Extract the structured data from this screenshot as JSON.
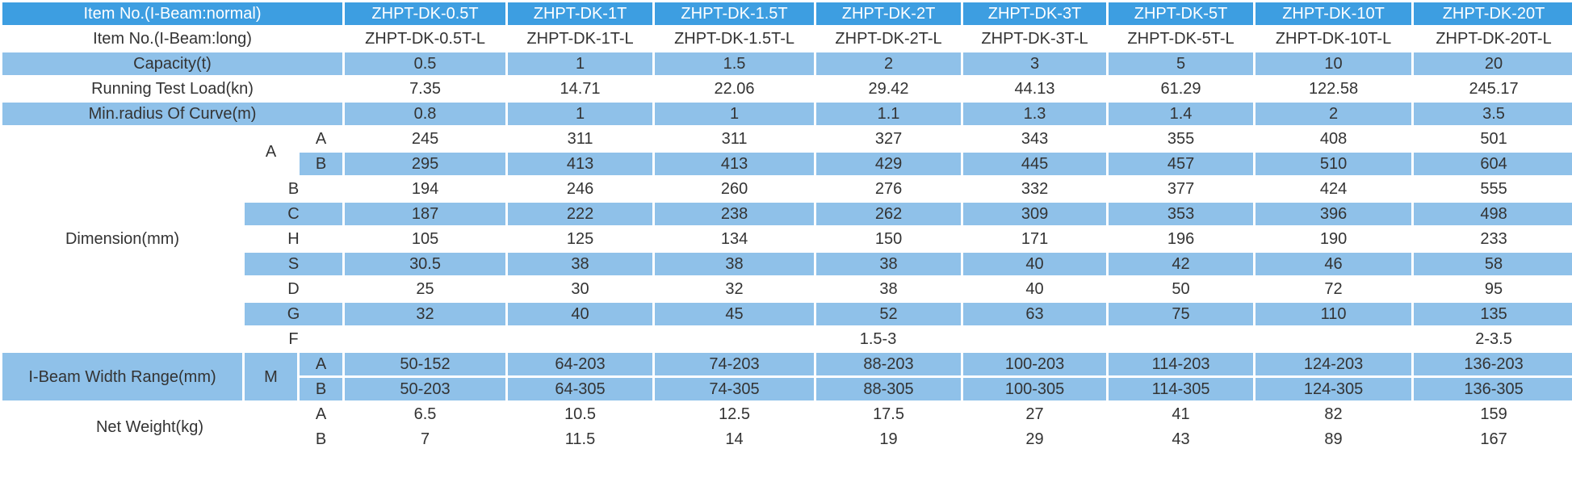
{
  "header": {
    "label": "Item No.(I-Beam:normal)",
    "models": [
      "ZHPT-DK-0.5T",
      "ZHPT-DK-1T",
      "ZHPT-DK-1.5T",
      "ZHPT-DK-2T",
      "ZHPT-DK-3T",
      "ZHPT-DK-5T",
      "ZHPT-DK-10T",
      "ZHPT-DK-20T"
    ]
  },
  "rows": {
    "long": {
      "label": "Item No.(I-Beam:long)",
      "values": [
        "ZHPT-DK-0.5T-L",
        "ZHPT-DK-1T-L",
        "ZHPT-DK-1.5T-L",
        "ZHPT-DK-2T-L",
        "ZHPT-DK-3T-L",
        "ZHPT-DK-5T-L",
        "ZHPT-DK-10T-L",
        "ZHPT-DK-20T-L"
      ]
    },
    "capacity": {
      "label": "Capacity(t)",
      "values": [
        "0.5",
        "1",
        "1.5",
        "2",
        "3",
        "5",
        "10",
        "20"
      ]
    },
    "test_load": {
      "label": "Running Test Load(kn)",
      "values": [
        "7.35",
        "14.71",
        "22.06",
        "29.42",
        "44.13",
        "61.29",
        "122.58",
        "245.17"
      ]
    },
    "radius": {
      "label": "Min.radius Of Curve(m)",
      "values": [
        "0.8",
        "1",
        "1",
        "1.1",
        "1.3",
        "1.4",
        "2",
        "3.5"
      ]
    }
  },
  "dimension": {
    "label": "Dimension(mm)",
    "a_label": "A",
    "a_rows": [
      {
        "sub": "A",
        "values": [
          "245",
          "311",
          "311",
          "327",
          "343",
          "355",
          "408",
          "501"
        ]
      },
      {
        "sub": "B",
        "values": [
          "295",
          "413",
          "413",
          "429",
          "445",
          "457",
          "510",
          "604"
        ]
      }
    ],
    "rows": [
      {
        "sub": "B",
        "values": [
          "194",
          "246",
          "260",
          "276",
          "332",
          "377",
          "424",
          "555"
        ]
      },
      {
        "sub": "C",
        "values": [
          "187",
          "222",
          "238",
          "262",
          "309",
          "353",
          "396",
          "498"
        ]
      },
      {
        "sub": "H",
        "values": [
          "105",
          "125",
          "134",
          "150",
          "171",
          "196",
          "190",
          "233"
        ]
      },
      {
        "sub": "S",
        "values": [
          "30.5",
          "38",
          "38",
          "38",
          "40",
          "42",
          "46",
          "58"
        ]
      },
      {
        "sub": "D",
        "values": [
          "25",
          "30",
          "32",
          "38",
          "40",
          "50",
          "72",
          "95"
        ]
      },
      {
        "sub": "G",
        "values": [
          "32",
          "40",
          "45",
          "52",
          "63",
          "75",
          "110",
          "135"
        ]
      }
    ],
    "f_row": {
      "sub": "F",
      "value_main": "1.5-3",
      "value_last": "2-3.5"
    }
  },
  "beam_width": {
    "label": "I-Beam Width Range(mm)",
    "m_label": "M",
    "rows": [
      {
        "sub": "A",
        "values": [
          "50-152",
          "64-203",
          "74-203",
          "88-203",
          "100-203",
          "114-203",
          "124-203",
          "136-203"
        ]
      },
      {
        "sub": "B",
        "values": [
          "50-203",
          "64-305",
          "74-305",
          "88-305",
          "100-305",
          "114-305",
          "124-305",
          "136-305"
        ]
      }
    ]
  },
  "net_weight": {
    "label": "Net Weight(kg)",
    "rows": [
      {
        "sub": "A",
        "values": [
          "6.5",
          "10.5",
          "12.5",
          "17.5",
          "27",
          "41",
          "82",
          "159"
        ]
      },
      {
        "sub": "B",
        "values": [
          "7",
          "11.5",
          "14",
          "19",
          "29",
          "43",
          "89",
          "167"
        ]
      }
    ]
  },
  "colors": {
    "header": "#3d9ee1",
    "stripe": "#8fc1e9",
    "text": "#333333"
  }
}
